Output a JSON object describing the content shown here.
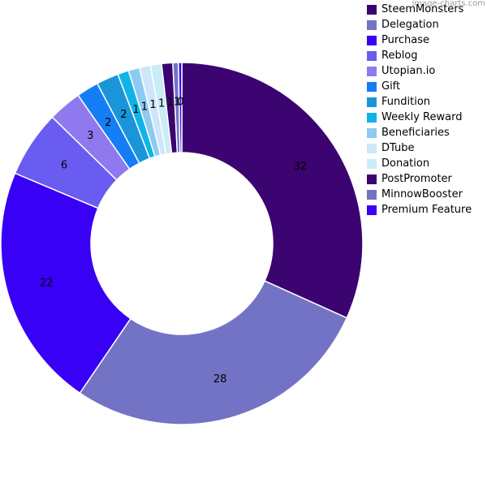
{
  "watermark": "image-charts.com",
  "chart_data": {
    "type": "pie",
    "style": "donut",
    "legend_position": "top-right",
    "slices": [
      {
        "label": "SteemMonsters",
        "value": 32,
        "color": "#3b0470"
      },
      {
        "label": "Delegation",
        "value": 28,
        "color": "#7373c5"
      },
      {
        "label": "Purchase",
        "value": 22,
        "color": "#3800f5"
      },
      {
        "label": "Reblog",
        "value": 6,
        "color": "#6a5cf0"
      },
      {
        "label": "Utopian.io",
        "value": 3,
        "color": "#8f79ee"
      },
      {
        "label": "Gift",
        "value": 2,
        "color": "#157ef6"
      },
      {
        "label": "Fundition",
        "value": 2,
        "color": "#1a95d9"
      },
      {
        "label": "Weekly Reward",
        "value": 1,
        "color": "#0fb4e6"
      },
      {
        "label": "Beneficiaries",
        "value": 1,
        "color": "#8ccaf2"
      },
      {
        "label": "DTube",
        "value": 1,
        "color": "#cde6fa"
      },
      {
        "label": "Donation",
        "value": 1,
        "color": "#c9ecf7"
      },
      {
        "label": "PostPromoter",
        "value": 1,
        "color": "#3b0470"
      },
      {
        "label": "MinnowBooster",
        "value": 0.5,
        "color": "#7373c5"
      },
      {
        "label": "Premium Feature",
        "value": 0.3,
        "color": "#3800f5"
      }
    ],
    "display_labels": [
      "32",
      "28",
      "22",
      "6",
      "3",
      "2",
      "2",
      "1",
      "1",
      "1",
      "1",
      "1",
      "1",
      "0"
    ]
  }
}
